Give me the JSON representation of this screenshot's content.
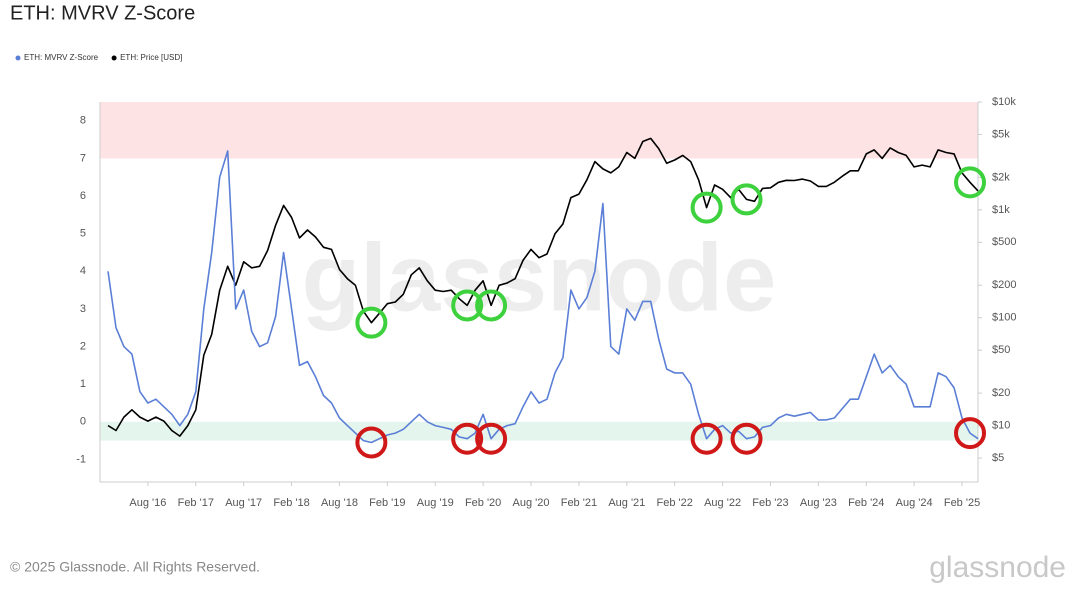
{
  "chart_data": {
    "type": "line",
    "title": "ETH: MVRV Z-Score",
    "log_y2": true,
    "grid": false,
    "legend": "top-left",
    "x": [
      "2016-03",
      "2016-04",
      "2016-05",
      "2016-06",
      "2016-07",
      "2016-08",
      "2016-09",
      "2016-10",
      "2016-11",
      "2016-12",
      "2017-01",
      "2017-02",
      "2017-03",
      "2017-04",
      "2017-05",
      "2017-06",
      "2017-07",
      "2017-08",
      "2017-09",
      "2017-10",
      "2017-11",
      "2017-12",
      "2018-01",
      "2018-02",
      "2018-03",
      "2018-04",
      "2018-05",
      "2018-06",
      "2018-07",
      "2018-08",
      "2018-09",
      "2018-10",
      "2018-11",
      "2018-12",
      "2019-01",
      "2019-02",
      "2019-03",
      "2019-04",
      "2019-05",
      "2019-06",
      "2019-07",
      "2019-08",
      "2019-09",
      "2019-10",
      "2019-11",
      "2019-12",
      "2020-01",
      "2020-02",
      "2020-03",
      "2020-04",
      "2020-05",
      "2020-06",
      "2020-07",
      "2020-08",
      "2020-09",
      "2020-10",
      "2020-11",
      "2020-12",
      "2021-01",
      "2021-02",
      "2021-03",
      "2021-04",
      "2021-05",
      "2021-06",
      "2021-07",
      "2021-08",
      "2021-09",
      "2021-10",
      "2021-11",
      "2021-12",
      "2022-01",
      "2022-02",
      "2022-03",
      "2022-04",
      "2022-05",
      "2022-06",
      "2022-07",
      "2022-08",
      "2022-09",
      "2022-10",
      "2022-11",
      "2022-12",
      "2023-01",
      "2023-02",
      "2023-03",
      "2023-04",
      "2023-05",
      "2023-06",
      "2023-07",
      "2023-08",
      "2023-09",
      "2023-10",
      "2023-11",
      "2023-12",
      "2024-01",
      "2024-02",
      "2024-03",
      "2024-04",
      "2024-05",
      "2024-06",
      "2024-07",
      "2024-08",
      "2024-09",
      "2024-10",
      "2024-11",
      "2024-12",
      "2025-01",
      "2025-02",
      "2025-03",
      "2025-04"
    ],
    "series": [
      {
        "name": "ETH: MVRV Z-Score",
        "color": "#5b7fd6",
        "axis": "y",
        "values": [
          4.0,
          2.5,
          2.0,
          1.8,
          0.8,
          0.5,
          0.6,
          0.4,
          0.2,
          -0.1,
          0.2,
          0.8,
          3.0,
          4.5,
          6.5,
          7.2,
          3.0,
          3.5,
          2.4,
          2.0,
          2.1,
          2.8,
          4.5,
          3.0,
          1.5,
          1.6,
          1.2,
          0.7,
          0.5,
          0.1,
          -0.1,
          -0.3,
          -0.5,
          -0.55,
          -0.45,
          -0.35,
          -0.3,
          -0.2,
          0.0,
          0.2,
          0.0,
          -0.1,
          -0.15,
          -0.2,
          -0.4,
          -0.45,
          -0.3,
          0.2,
          -0.45,
          -0.2,
          -0.1,
          -0.05,
          0.4,
          0.8,
          0.5,
          0.6,
          1.3,
          1.7,
          3.5,
          3.0,
          3.3,
          4.0,
          5.8,
          2.0,
          1.8,
          3.0,
          2.7,
          3.2,
          3.2,
          2.2,
          1.4,
          1.3,
          1.3,
          1.0,
          0.2,
          -0.45,
          -0.2,
          -0.1,
          -0.3,
          -0.25,
          -0.45,
          -0.4,
          -0.15,
          -0.1,
          0.1,
          0.2,
          0.15,
          0.2,
          0.25,
          0.05,
          0.05,
          0.1,
          0.35,
          0.6,
          0.6,
          1.2,
          1.8,
          1.3,
          1.5,
          1.2,
          1.0,
          0.4,
          0.4,
          0.4,
          1.3,
          1.2,
          0.9,
          0.1,
          -0.3,
          -0.45
        ]
      },
      {
        "name": "ETH: Price [USD]",
        "color": "#000000",
        "axis": "y2",
        "values": [
          10,
          9,
          12,
          14,
          12,
          11,
          12,
          11,
          9,
          8,
          10,
          14,
          45,
          70,
          180,
          300,
          200,
          330,
          290,
          300,
          420,
          720,
          1100,
          850,
          550,
          650,
          560,
          450,
          430,
          280,
          230,
          200,
          115,
          90,
          110,
          135,
          140,
          165,
          250,
          290,
          220,
          180,
          175,
          180,
          150,
          130,
          180,
          220,
          130,
          200,
          210,
          230,
          340,
          430,
          360,
          390,
          600,
          740,
          1300,
          1400,
          1900,
          2800,
          2400,
          2200,
          2500,
          3400,
          3000,
          4300,
          4600,
          3700,
          2700,
          2900,
          3200,
          2800,
          1900,
          1050,
          1700,
          1550,
          1300,
          1550,
          1250,
          1200,
          1580,
          1600,
          1800,
          1880,
          1870,
          1930,
          1850,
          1650,
          1650,
          1800,
          2050,
          2300,
          2300,
          3300,
          3600,
          3000,
          3750,
          3400,
          3200,
          2500,
          2600,
          2500,
          3600,
          3400,
          3300,
          2200,
          1800,
          1500
        ]
      }
    ],
    "xlim": [
      "2016-02",
      "2025-04"
    ],
    "xticks": [
      {
        "value": "2016-08",
        "label": "Aug '16"
      },
      {
        "value": "2017-02",
        "label": "Feb '17"
      },
      {
        "value": "2017-08",
        "label": "Aug '17"
      },
      {
        "value": "2018-02",
        "label": "Feb '18"
      },
      {
        "value": "2018-08",
        "label": "Aug '18"
      },
      {
        "value": "2019-02",
        "label": "Feb '19"
      },
      {
        "value": "2019-08",
        "label": "Aug '19"
      },
      {
        "value": "2020-02",
        "label": "Feb '20"
      },
      {
        "value": "2020-08",
        "label": "Aug '20"
      },
      {
        "value": "2021-02",
        "label": "Feb '21"
      },
      {
        "value": "2021-08",
        "label": "Aug '21"
      },
      {
        "value": "2022-02",
        "label": "Feb '22"
      },
      {
        "value": "2022-08",
        "label": "Aug '22"
      },
      {
        "value": "2023-02",
        "label": "Feb '23"
      },
      {
        "value": "2023-08",
        "label": "Aug '23"
      },
      {
        "value": "2024-02",
        "label": "Feb '24"
      },
      {
        "value": "2024-08",
        "label": "Aug '24"
      },
      {
        "value": "2025-02",
        "label": "Feb '25"
      }
    ],
    "ylim": [
      -1.6,
      8.5
    ],
    "yticks": [
      -1,
      0,
      1,
      2,
      3,
      4,
      5,
      6,
      7,
      8
    ],
    "y2lim": [
      3,
      10000
    ],
    "y2ticks": [
      {
        "value": 5,
        "label": "$5"
      },
      {
        "value": 10,
        "label": "$10"
      },
      {
        "value": 20,
        "label": "$20"
      },
      {
        "value": 50,
        "label": "$50"
      },
      {
        "value": 100,
        "label": "$100"
      },
      {
        "value": 200,
        "label": "$200"
      },
      {
        "value": 500,
        "label": "$500"
      },
      {
        "value": 1000,
        "label": "$1k"
      },
      {
        "value": 2000,
        "label": "$2k"
      },
      {
        "value": 5000,
        "label": "$5k"
      },
      {
        "value": 10000,
        "label": "$10k"
      }
    ],
    "zones": [
      {
        "from": 7,
        "to": 8.5,
        "color": "#fde3e3"
      },
      {
        "from": -0.5,
        "to": 0,
        "color": "#e3f5ec"
      }
    ],
    "circles": {
      "x": [
        "2018-12",
        "2019-12",
        "2020-03",
        "2022-06",
        "2022-11",
        "2025-03"
      ],
      "price_color": "#3dd13d",
      "z_color": "#d01818"
    },
    "watermark": "glassnode"
  },
  "footer": {
    "copyright": "© 2025 Glassnode. All Rights Reserved.",
    "logo": "glassnode"
  }
}
